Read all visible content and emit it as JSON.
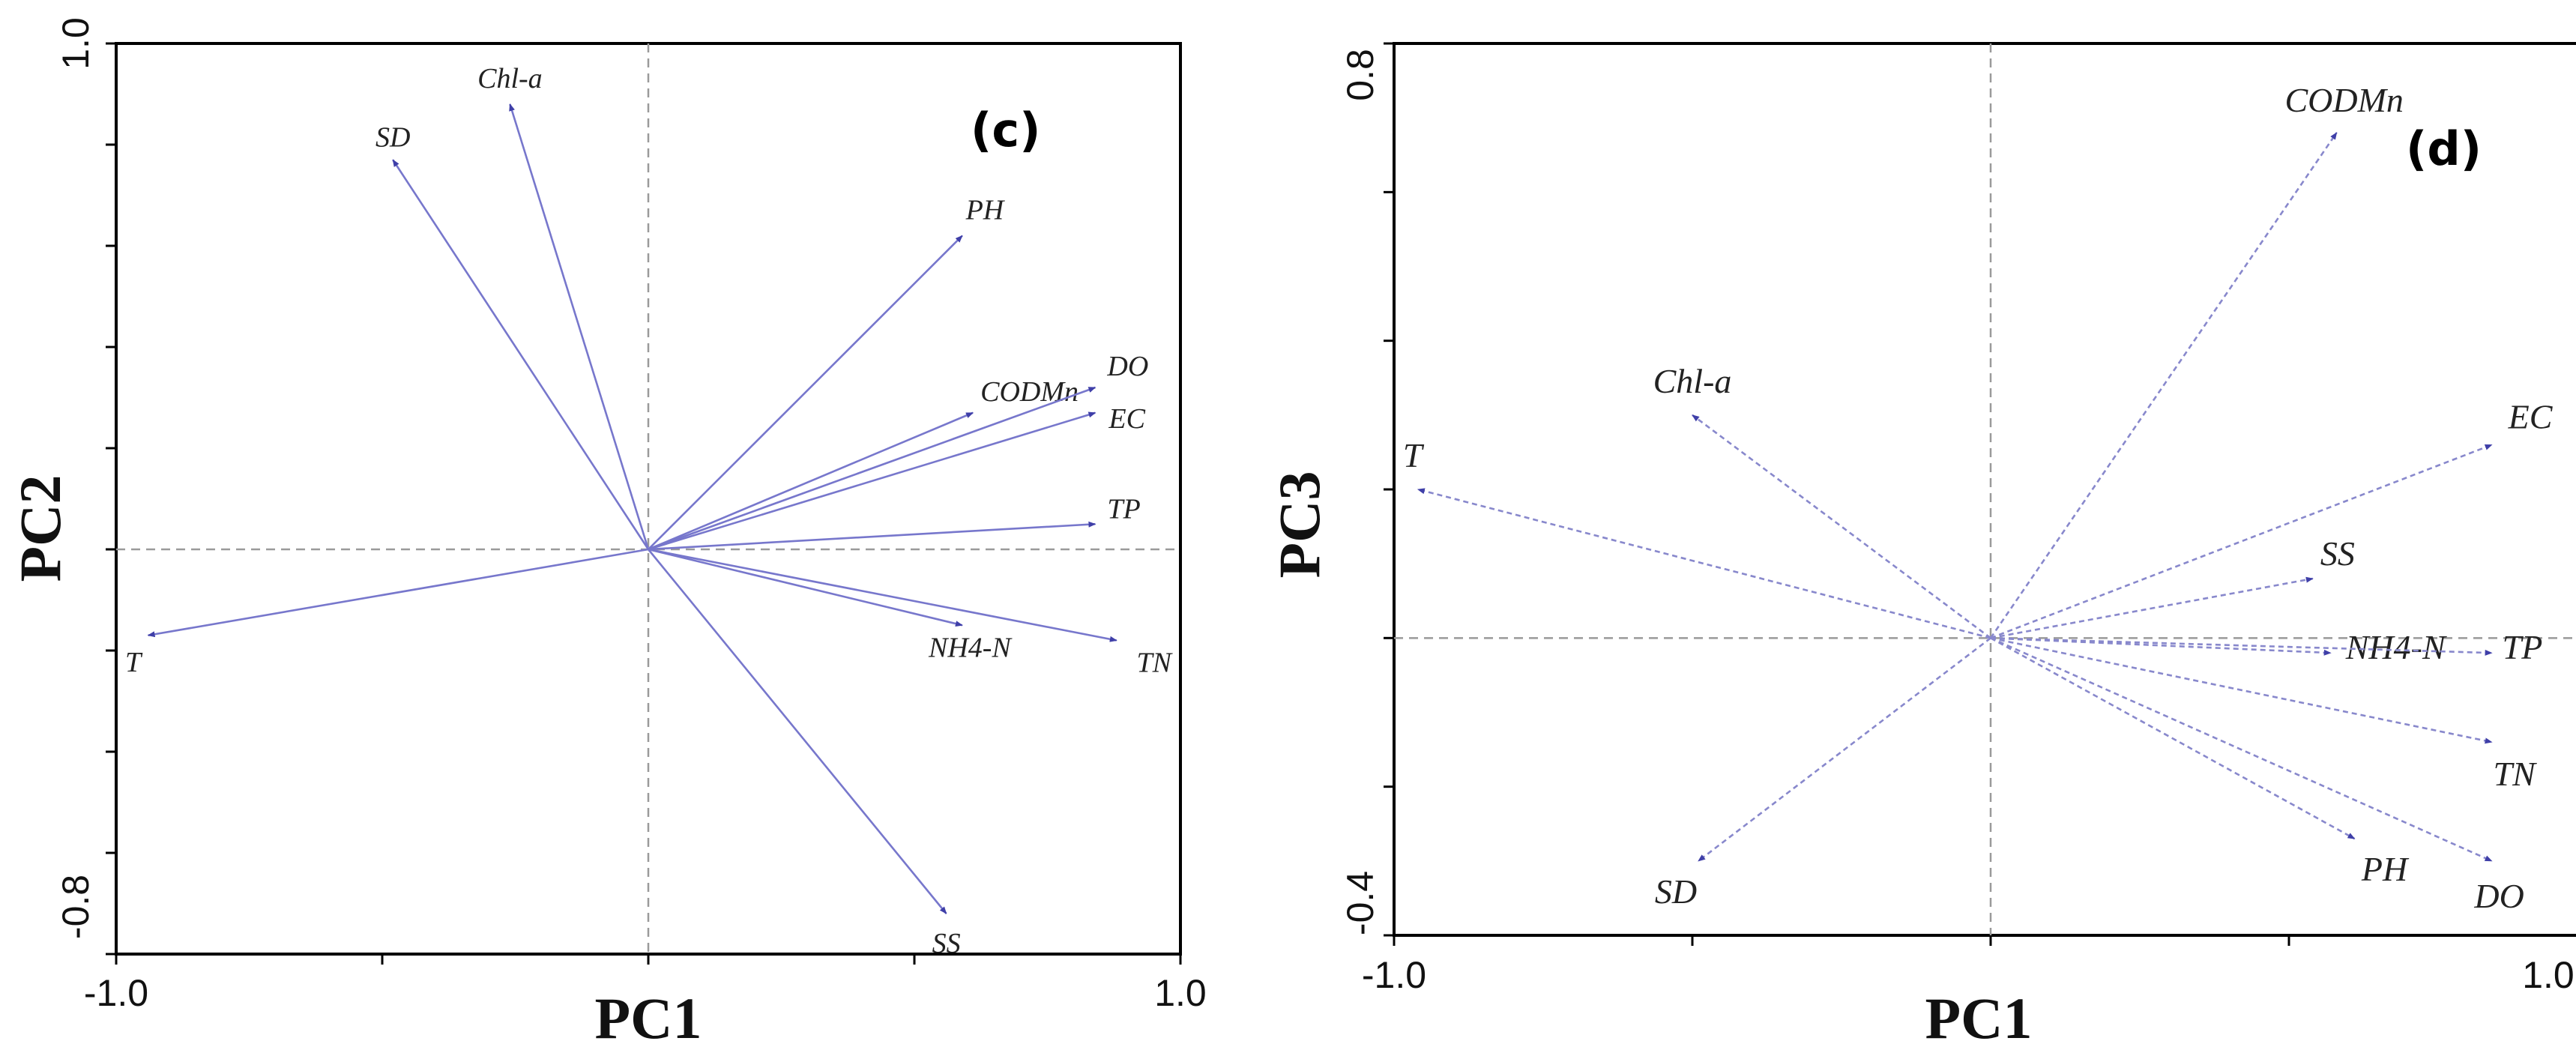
{
  "colors": {
    "vector": "#3f3fa8",
    "vector_line": "#7777cc",
    "zero_line": "#9a9a9a",
    "frame": "#000000"
  },
  "chart_data": [
    {
      "type": "scatter",
      "subtype": "biplot",
      "panel_label": "(c)",
      "xlabel": "PC1",
      "ylabel": "PC2",
      "xlim": [
        -1.0,
        1.0
      ],
      "ylim": [
        -0.8,
        1.0
      ],
      "x_tick_labels": [
        "-1.0",
        "1.0"
      ],
      "y_tick_labels": [
        "1.0",
        "-0.8"
      ],
      "grid": false,
      "vectors": [
        {
          "name": "Chl-a",
          "x": -0.26,
          "y": 0.88
        },
        {
          "name": "SD",
          "x": -0.48,
          "y": 0.77
        },
        {
          "name": "PH",
          "x": 0.59,
          "y": 0.62
        },
        {
          "name": "CODMn",
          "x": 0.61,
          "y": 0.27
        },
        {
          "name": "DO",
          "x": 0.84,
          "y": 0.32
        },
        {
          "name": "EC",
          "x": 0.84,
          "y": 0.27
        },
        {
          "name": "TP",
          "x": 0.84,
          "y": 0.05
        },
        {
          "name": "T",
          "x": -0.94,
          "y": -0.17
        },
        {
          "name": "NH4-N",
          "x": 0.59,
          "y": -0.15
        },
        {
          "name": "TN",
          "x": 0.88,
          "y": -0.18
        },
        {
          "name": "SS",
          "x": 0.56,
          "y": -0.72
        }
      ]
    },
    {
      "type": "scatter",
      "subtype": "biplot",
      "panel_label": "(d)",
      "xlabel": "PC1",
      "ylabel": "PC3",
      "xlim": [
        -1.0,
        1.0
      ],
      "ylim": [
        -0.4,
        0.8
      ],
      "x_tick_labels": [
        "-1.0",
        "1.0"
      ],
      "y_tick_labels": [
        "0.8",
        "-0.4"
      ],
      "grid": false,
      "vectors": [
        {
          "name": "CODMn",
          "x": 0.58,
          "y": 0.68
        },
        {
          "name": "Chl-a",
          "x": -0.5,
          "y": 0.3
        },
        {
          "name": "EC",
          "x": 0.84,
          "y": 0.26
        },
        {
          "name": "T",
          "x": -0.96,
          "y": 0.2
        },
        {
          "name": "SS",
          "x": 0.54,
          "y": 0.08
        },
        {
          "name": "NH4-N",
          "x": 0.57,
          "y": -0.02
        },
        {
          "name": "TP",
          "x": 0.84,
          "y": -0.02
        },
        {
          "name": "TN",
          "x": 0.84,
          "y": -0.14
        },
        {
          "name": "PH",
          "x": 0.61,
          "y": -0.27
        },
        {
          "name": "DO",
          "x": 0.84,
          "y": -0.3
        },
        {
          "name": "SD",
          "x": -0.49,
          "y": -0.3
        }
      ]
    }
  ]
}
